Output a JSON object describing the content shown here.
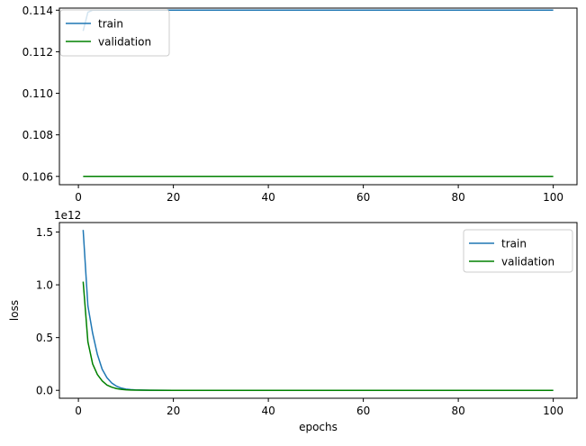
{
  "chart_data": [
    {
      "type": "line",
      "title": "",
      "xlabel": "",
      "ylabel": "",
      "y_offset_label": "",
      "xlim": [
        -4.0,
        105.0
      ],
      "ylim": [
        0.1056,
        0.1141
      ],
      "x_ticks": [
        0,
        20,
        40,
        60,
        80,
        100
      ],
      "x_tick_labels": [
        "0",
        "20",
        "40",
        "60",
        "80",
        "100"
      ],
      "y_ticks": [
        0.106,
        0.108,
        0.11,
        0.112,
        0.114
      ],
      "y_tick_labels": [
        "0.106",
        "0.108",
        "0.110",
        "0.112",
        "0.114"
      ],
      "grid": false,
      "legend_position": "top-left",
      "series": [
        {
          "name": "train",
          "color": "#1f77b4",
          "x": [
            1,
            2,
            3,
            100
          ],
          "y": [
            0.113,
            0.1139,
            0.114,
            0.114
          ]
        },
        {
          "name": "validation",
          "color": "#008000",
          "x": [
            1,
            100
          ],
          "y": [
            0.106,
            0.106
          ]
        }
      ]
    },
    {
      "type": "line",
      "title": "",
      "xlabel": "epochs",
      "ylabel": "loss",
      "y_offset_label": "1e12",
      "xlim": [
        -4.0,
        105.0
      ],
      "ylim": [
        -0.075,
        1.59
      ],
      "x_ticks": [
        0,
        20,
        40,
        60,
        80,
        100
      ],
      "x_tick_labels": [
        "0",
        "20",
        "40",
        "60",
        "80",
        "100"
      ],
      "y_ticks": [
        0.0,
        0.5,
        1.0,
        1.5
      ],
      "y_tick_labels": [
        "0.0",
        "0.5",
        "1.0",
        "1.5"
      ],
      "grid": false,
      "legend_position": "top-right",
      "series": [
        {
          "name": "train",
          "color": "#1f77b4",
          "x": [
            1,
            2,
            3,
            4,
            5,
            6,
            7,
            8,
            9,
            10,
            11,
            12,
            15,
            20,
            30,
            50,
            100
          ],
          "y": [
            1.52,
            0.8,
            0.54,
            0.34,
            0.2,
            0.12,
            0.07,
            0.04,
            0.022,
            0.012,
            0.007,
            0.004,
            0.001,
            0.0,
            0.0,
            0.0,
            0.0
          ]
        },
        {
          "name": "validation",
          "color": "#008000",
          "x": [
            1,
            2,
            3,
            4,
            5,
            6,
            7,
            8,
            9,
            10,
            11,
            12,
            15,
            20,
            30,
            50,
            100
          ],
          "y": [
            1.03,
            0.46,
            0.25,
            0.15,
            0.09,
            0.05,
            0.03,
            0.017,
            0.009,
            0.005,
            0.003,
            0.002,
            0.0005,
            0.0,
            0.0,
            0.0,
            0.0
          ]
        }
      ]
    }
  ]
}
